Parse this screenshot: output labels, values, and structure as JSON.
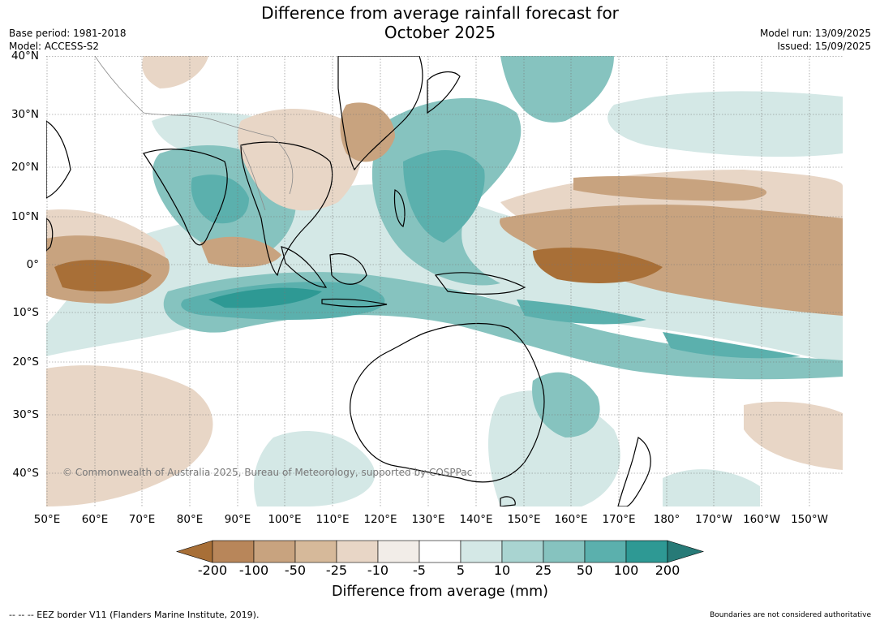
{
  "title_line1": "Difference from average rainfall forecast for",
  "title_line2": "October 2025",
  "base_period": "Base period: 1981-2018",
  "model": "Model: ACCESS-S2",
  "model_run": "Model run: 13/09/2025",
  "issued": "Issued: 15/09/2025",
  "lat_labels": [
    "40°N",
    "30°N",
    "20°N",
    "10°N",
    "0°",
    "10°S",
    "20°S",
    "30°S",
    "40°S"
  ],
  "lon_labels": [
    "50°E",
    "60°E",
    "70°E",
    "80°E",
    "90°E",
    "100°E",
    "110°E",
    "120°E",
    "130°E",
    "140°E",
    "150°E",
    "160°E",
    "170°E",
    "180°",
    "170°W",
    "160°W",
    "150°W"
  ],
  "copyright": "© Commonwealth of Australia 2025, Bureau of Meteorology, supported by COSPPac",
  "legend": {
    "title": "Difference from average (mm)",
    "ticks": [
      "-200",
      "-100",
      "-50",
      "-25",
      "-10",
      "-5",
      "5",
      "10",
      "25",
      "50",
      "100",
      "200"
    ],
    "colors": [
      "#a86f37",
      "#b8865a",
      "#c8a37f",
      "#d6b99a",
      "#e8d6c6",
      "#f2ede8",
      "#ffffff",
      "#d4e8e6",
      "#a9d4d1",
      "#86c3bf",
      "#5bb0ad",
      "#2e9994",
      "#277a77"
    ]
  },
  "footer_left": "--  --  -- EEZ border V11 (Flanders Marine Institute, 2019).",
  "footer_right": "Boundaries are not considered authoritative"
}
